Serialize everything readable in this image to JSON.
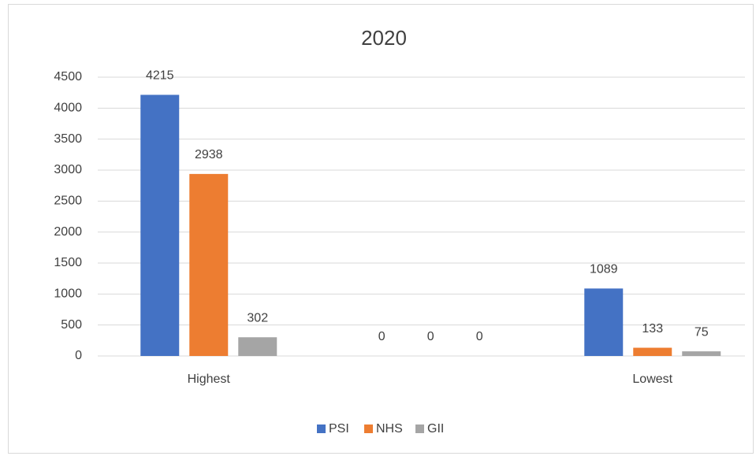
{
  "chart_data": {
    "type": "bar",
    "title": "2020",
    "categories": [
      "Highest",
      null,
      "Lowest"
    ],
    "series": [
      {
        "name": "PSI",
        "color": "#4472c4",
        "values": [
          4215,
          0,
          1089
        ]
      },
      {
        "name": "NHS",
        "color": "#ed7d31",
        "values": [
          2938,
          0,
          133
        ]
      },
      {
        "name": "GII",
        "color": "#a5a5a5",
        "values": [
          302,
          0,
          75
        ]
      }
    ],
    "ylim": [
      0,
      4500
    ],
    "yticks": [
      0,
      500,
      1000,
      1500,
      2000,
      2500,
      3000,
      3500,
      4000,
      4500
    ],
    "grid": true,
    "legend": "bottom"
  }
}
